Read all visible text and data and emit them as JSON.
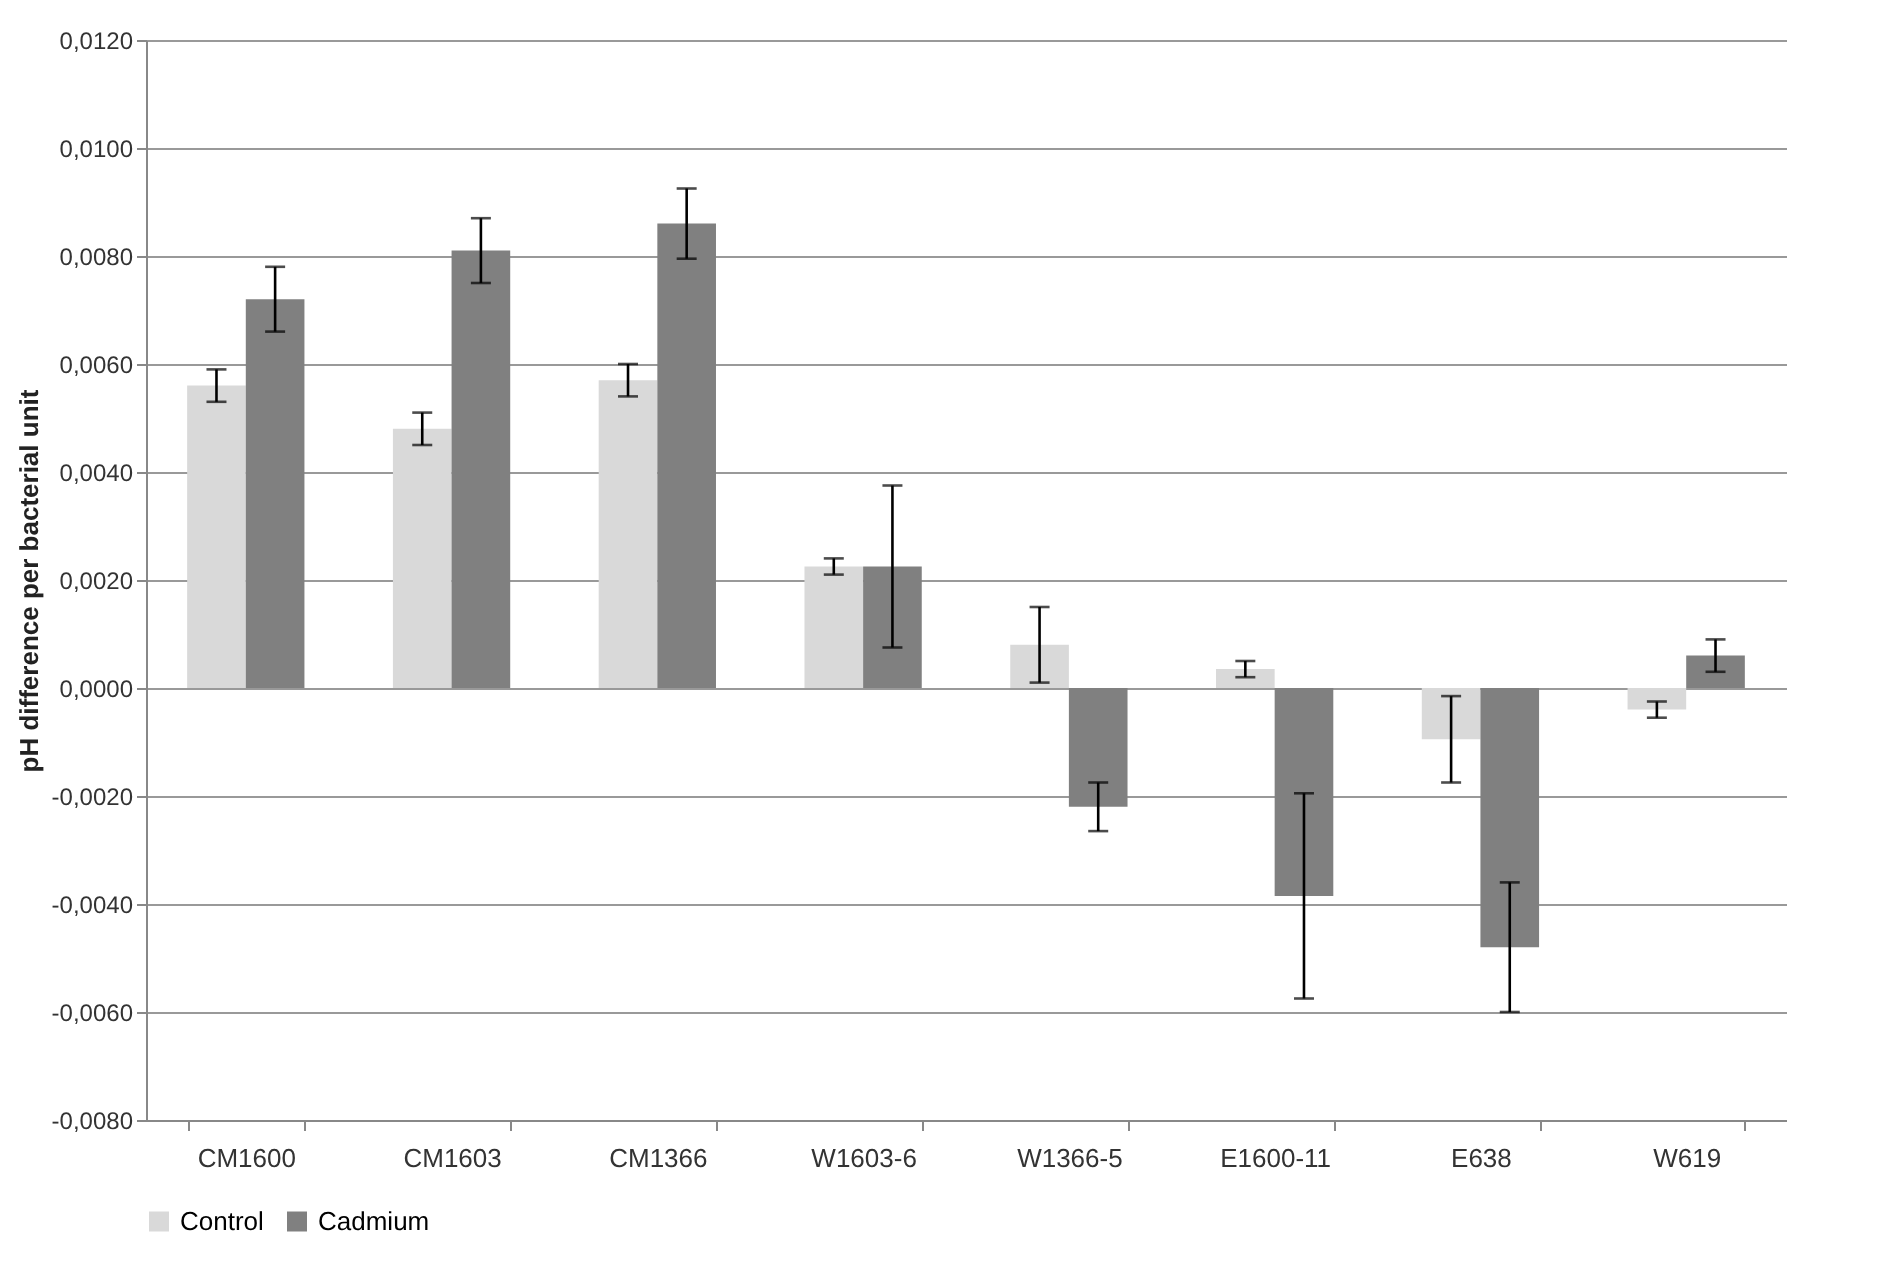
{
  "chart_data": {
    "type": "bar",
    "ylabel": "pH difference per bacterial unit",
    "categories": [
      "CM1600",
      "CM1603",
      "CM1366",
      "W1603-6",
      "W1366-5",
      "E1600-11",
      "E638",
      "W619"
    ],
    "series": [
      {
        "name": "Control",
        "color": "#d9d9d9",
        "values": [
          0.0056,
          0.0048,
          0.0057,
          0.00225,
          0.0008,
          0.00035,
          -0.00095,
          -0.0004
        ],
        "errors": [
          0.0003,
          0.0003,
          0.0003,
          0.00015,
          0.0007,
          0.00015,
          0.0008,
          0.00015
        ]
      },
      {
        "name": "Cadmium",
        "color": "#808080",
        "values": [
          0.0072,
          0.0081,
          0.0086,
          0.00225,
          -0.0022,
          -0.00385,
          -0.0048,
          0.0006
        ],
        "errors": [
          0.0006,
          0.0006,
          0.00065,
          0.0015,
          0.00045,
          0.0019,
          0.0012,
          0.0003
        ]
      }
    ],
    "ylim": [
      -0.008,
      0.012
    ],
    "yticks": [
      {
        "value": -0.008,
        "label": "-0,0080"
      },
      {
        "value": -0.006,
        "label": "-0,0060"
      },
      {
        "value": -0.004,
        "label": "-0,0040"
      },
      {
        "value": -0.002,
        "label": "-0,0020"
      },
      {
        "value": 0,
        "label": "0,0000"
      },
      {
        "value": 0.002,
        "label": "0,0020"
      },
      {
        "value": 0.004,
        "label": "0,0040"
      },
      {
        "value": 0.006,
        "label": "0,0060"
      },
      {
        "value": 0.008,
        "label": "0,0080"
      },
      {
        "value": 0.01,
        "label": "0,0100"
      },
      {
        "value": 0.012,
        "label": "0,0120"
      }
    ],
    "grid": "y",
    "legend": "bottom"
  }
}
